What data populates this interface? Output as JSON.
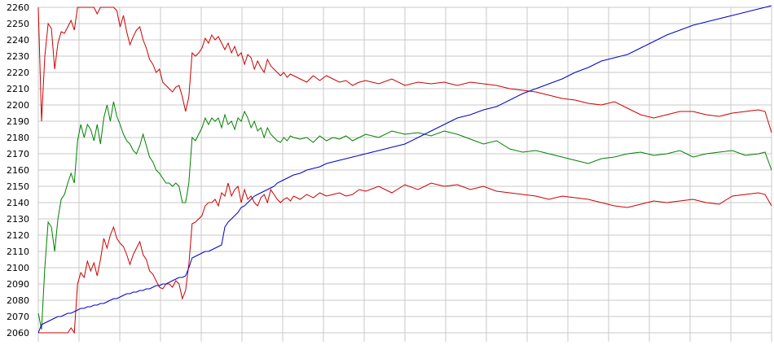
{
  "chart_data": {
    "type": "line",
    "title": "",
    "xlabel": "",
    "ylabel": "",
    "ylim": [
      2060,
      2260
    ],
    "y_ticks": [
      2060,
      2070,
      2080,
      2090,
      2100,
      2110,
      2120,
      2130,
      2140,
      2150,
      2160,
      2170,
      2180,
      2190,
      2200,
      2210,
      2220,
      2230,
      2240,
      2250,
      2260
    ],
    "x_ticks_count": 19,
    "x_tick_labels_shown": false,
    "grid": true,
    "legend": "none",
    "xlim": [
      0,
      224
    ],
    "series": [
      {
        "color": "#cc0000",
        "x": [
          0,
          1,
          2,
          3,
          4,
          5,
          6,
          7,
          8,
          9,
          10,
          11,
          12,
          13,
          14,
          15,
          16,
          17,
          18,
          19,
          20,
          21,
          22,
          23,
          24,
          25,
          26,
          27,
          28,
          29,
          30,
          31,
          32,
          33,
          34,
          35,
          36,
          37,
          38,
          39,
          40,
          41,
          42,
          43,
          44,
          45,
          46,
          47,
          48,
          49,
          50,
          51,
          52,
          53,
          54,
          55,
          56,
          57,
          58,
          59,
          60,
          61,
          62,
          63,
          64,
          65,
          66,
          67,
          68,
          69,
          70,
          71,
          72,
          73,
          74,
          75,
          76,
          77,
          78,
          80,
          82,
          84,
          86,
          88,
          90,
          92,
          94,
          96,
          98,
          100,
          104,
          108,
          112,
          116,
          120,
          124,
          128,
          132,
          136,
          140,
          144,
          148,
          152,
          156,
          160,
          164,
          168,
          172,
          176,
          180,
          184,
          188,
          192,
          196,
          200,
          204,
          208,
          212,
          216,
          220,
          222,
          224
        ],
        "values": [
          2260,
          2190,
          2230,
          2250,
          2247,
          2222,
          2238,
          2245,
          2244,
          2248,
          2252,
          2246,
          2260,
          2260,
          2260,
          2260,
          2260,
          2260,
          2256,
          2260,
          2260,
          2260,
          2260,
          2260,
          2258,
          2248,
          2255,
          2245,
          2237,
          2242,
          2246,
          2248,
          2240,
          2235,
          2228,
          2225,
          2220,
          2222,
          2214,
          2212,
          2210,
          2208,
          2211,
          2212,
          2205,
          2196,
          2205,
          2232,
          2230,
          2232,
          2235,
          2241,
          2238,
          2243,
          2240,
          2242,
          2238,
          2234,
          2238,
          2232,
          2236,
          2230,
          2232,
          2225,
          2231,
          2229,
          2222,
          2227,
          2223,
          2220,
          2228,
          2224,
          2222,
          2220,
          2218,
          2220,
          2217,
          2219,
          2218,
          2216,
          2214,
          2218,
          2215,
          2218,
          2216,
          2214,
          2215,
          2212,
          2214,
          2215,
          2213,
          2216,
          2212,
          2214,
          2213,
          2214,
          2212,
          2214,
          2213,
          2212,
          2210,
          2209,
          2208,
          2206,
          2204,
          2203,
          2201,
          2200,
          2202,
          2198,
          2194,
          2192,
          2194,
          2196,
          2196,
          2194,
          2193,
          2195,
          2196,
          2197,
          2196,
          2183
        ]
      },
      {
        "color": "#008000",
        "x": [
          0,
          1,
          2,
          3,
          4,
          5,
          6,
          7,
          8,
          9,
          10,
          11,
          12,
          13,
          14,
          15,
          16,
          17,
          18,
          19,
          20,
          21,
          22,
          23,
          24,
          25,
          26,
          27,
          28,
          29,
          30,
          31,
          32,
          33,
          34,
          35,
          36,
          37,
          38,
          39,
          40,
          41,
          42,
          43,
          44,
          45,
          46,
          47,
          48,
          49,
          50,
          51,
          52,
          53,
          54,
          55,
          56,
          57,
          58,
          59,
          60,
          61,
          62,
          63,
          64,
          65,
          66,
          67,
          68,
          69,
          70,
          71,
          72,
          73,
          74,
          75,
          76,
          77,
          78,
          80,
          82,
          84,
          86,
          88,
          90,
          92,
          94,
          96,
          98,
          100,
          104,
          108,
          112,
          116,
          120,
          124,
          128,
          132,
          136,
          140,
          144,
          148,
          152,
          156,
          160,
          164,
          168,
          172,
          176,
          180,
          184,
          188,
          192,
          196,
          200,
          204,
          208,
          212,
          216,
          220,
          222,
          224
        ],
        "values": [
          2072,
          2062,
          2100,
          2128,
          2125,
          2110,
          2130,
          2142,
          2145,
          2152,
          2158,
          2152,
          2178,
          2188,
          2180,
          2188,
          2185,
          2178,
          2188,
          2176,
          2192,
          2200,
          2190,
          2202,
          2193,
          2188,
          2182,
          2178,
          2176,
          2172,
          2170,
          2175,
          2182,
          2175,
          2168,
          2165,
          2160,
          2158,
          2155,
          2152,
          2152,
          2150,
          2152,
          2150,
          2140,
          2140,
          2152,
          2180,
          2178,
          2182,
          2186,
          2192,
          2188,
          2192,
          2190,
          2192,
          2186,
          2194,
          2188,
          2190,
          2185,
          2192,
          2190,
          2196,
          2192,
          2186,
          2190,
          2184,
          2186,
          2180,
          2186,
          2182,
          2180,
          2178,
          2177,
          2180,
          2178,
          2181,
          2180,
          2179,
          2180,
          2177,
          2181,
          2178,
          2180,
          2179,
          2181,
          2178,
          2180,
          2182,
          2180,
          2184,
          2182,
          2183,
          2181,
          2184,
          2182,
          2179,
          2176,
          2178,
          2173,
          2171,
          2172,
          2170,
          2168,
          2166,
          2164,
          2167,
          2168,
          2170,
          2171,
          2169,
          2170,
          2172,
          2168,
          2170,
          2171,
          2172,
          2169,
          2170,
          2171,
          2160
        ]
      },
      {
        "color": "#cc0000",
        "x": [
          0,
          1,
          2,
          3,
          4,
          5,
          6,
          7,
          8,
          9,
          10,
          11,
          12,
          13,
          14,
          15,
          16,
          17,
          18,
          19,
          20,
          21,
          22,
          23,
          24,
          25,
          26,
          27,
          28,
          29,
          30,
          31,
          32,
          33,
          34,
          35,
          36,
          37,
          38,
          39,
          40,
          41,
          42,
          43,
          44,
          45,
          46,
          47,
          48,
          49,
          50,
          51,
          52,
          53,
          54,
          55,
          56,
          57,
          58,
          59,
          60,
          61,
          62,
          63,
          64,
          65,
          66,
          67,
          68,
          69,
          70,
          71,
          72,
          73,
          74,
          75,
          76,
          77,
          78,
          80,
          82,
          84,
          86,
          88,
          90,
          92,
          94,
          96,
          98,
          100,
          104,
          108,
          112,
          116,
          120,
          124,
          128,
          132,
          136,
          140,
          144,
          148,
          152,
          156,
          160,
          164,
          168,
          172,
          176,
          180,
          184,
          188,
          192,
          196,
          200,
          204,
          208,
          212,
          216,
          220,
          222,
          224
        ],
        "values": [
          2060,
          2060,
          2060,
          2060,
          2060,
          2060,
          2060,
          2060,
          2060,
          2060,
          2063,
          2060,
          2090,
          2097,
          2094,
          2104,
          2098,
          2103,
          2095,
          2105,
          2118,
          2112,
          2120,
          2125,
          2118,
          2115,
          2113,
          2108,
          2102,
          2108,
          2112,
          2116,
          2108,
          2105,
          2098,
          2096,
          2092,
          2088,
          2087,
          2090,
          2090,
          2088,
          2092,
          2090,
          2081,
          2086,
          2102,
          2127,
          2128,
          2130,
          2132,
          2138,
          2140,
          2140,
          2142,
          2138,
          2146,
          2144,
          2152,
          2144,
          2148,
          2150,
          2140,
          2148,
          2142,
          2144,
          2140,
          2138,
          2143,
          2145,
          2140,
          2148,
          2145,
          2142,
          2140,
          2142,
          2143,
          2141,
          2144,
          2142,
          2145,
          2143,
          2146,
          2144,
          2145,
          2146,
          2144,
          2145,
          2148,
          2147,
          2150,
          2146,
          2151,
          2148,
          2152,
          2150,
          2151,
          2148,
          2150,
          2147,
          2146,
          2145,
          2144,
          2142,
          2144,
          2143,
          2142,
          2140,
          2138,
          2137,
          2139,
          2141,
          2140,
          2141,
          2142,
          2140,
          2139,
          2144,
          2145,
          2146,
          2145,
          2138
        ]
      },
      {
        "color": "#0000cc",
        "x": [
          0,
          1,
          2,
          3,
          4,
          5,
          6,
          7,
          8,
          9,
          10,
          11,
          12,
          13,
          14,
          15,
          16,
          17,
          18,
          19,
          20,
          21,
          22,
          23,
          24,
          25,
          26,
          27,
          28,
          29,
          30,
          31,
          32,
          33,
          34,
          35,
          36,
          37,
          38,
          39,
          40,
          41,
          42,
          43,
          44,
          45,
          46,
          47,
          48,
          49,
          50,
          51,
          52,
          53,
          54,
          55,
          56,
          57,
          58,
          59,
          60,
          61,
          62,
          63,
          64,
          65,
          66,
          67,
          68,
          69,
          70,
          71,
          72,
          73,
          74,
          75,
          76,
          77,
          78,
          80,
          82,
          84,
          86,
          88,
          90,
          92,
          94,
          96,
          98,
          100,
          104,
          108,
          112,
          116,
          120,
          124,
          128,
          132,
          136,
          140,
          144,
          148,
          152,
          156,
          160,
          164,
          168,
          172,
          176,
          180,
          184,
          188,
          192,
          196,
          200,
          204,
          208,
          212,
          216,
          220,
          222,
          224
        ],
        "values": [
          2060,
          2065,
          2066,
          2067,
          2068,
          2069,
          2070,
          2070,
          2071,
          2072,
          2072,
          2073,
          2074,
          2075,
          2075,
          2076,
          2076,
          2077,
          2077,
          2078,
          2078,
          2079,
          2080,
          2081,
          2081,
          2082,
          2083,
          2084,
          2084,
          2085,
          2085,
          2086,
          2086,
          2087,
          2087,
          2088,
          2089,
          2089,
          2090,
          2090,
          2091,
          2092,
          2093,
          2094,
          2094,
          2095,
          2100,
          2106,
          2107,
          2108,
          2109,
          2110,
          2110,
          2111,
          2112,
          2113,
          2114,
          2125,
          2128,
          2130,
          2132,
          2134,
          2137,
          2138,
          2140,
          2142,
          2144,
          2145,
          2146,
          2147,
          2148,
          2149,
          2150,
          2152,
          2153,
          2154,
          2155,
          2156,
          2157,
          2158,
          2160,
          2161,
          2162,
          2164,
          2165,
          2166,
          2167,
          2168,
          2169,
          2170,
          2172,
          2174,
          2176,
          2180,
          2184,
          2188,
          2192,
          2194,
          2197,
          2199,
          2203,
          2207,
          2210,
          2213,
          2216,
          2220,
          2223,
          2227,
          2229,
          2231,
          2235,
          2239,
          2243,
          2246,
          2249,
          2251,
          2253,
          2255,
          2257,
          2259,
          2260,
          2261
        ]
      }
    ]
  }
}
